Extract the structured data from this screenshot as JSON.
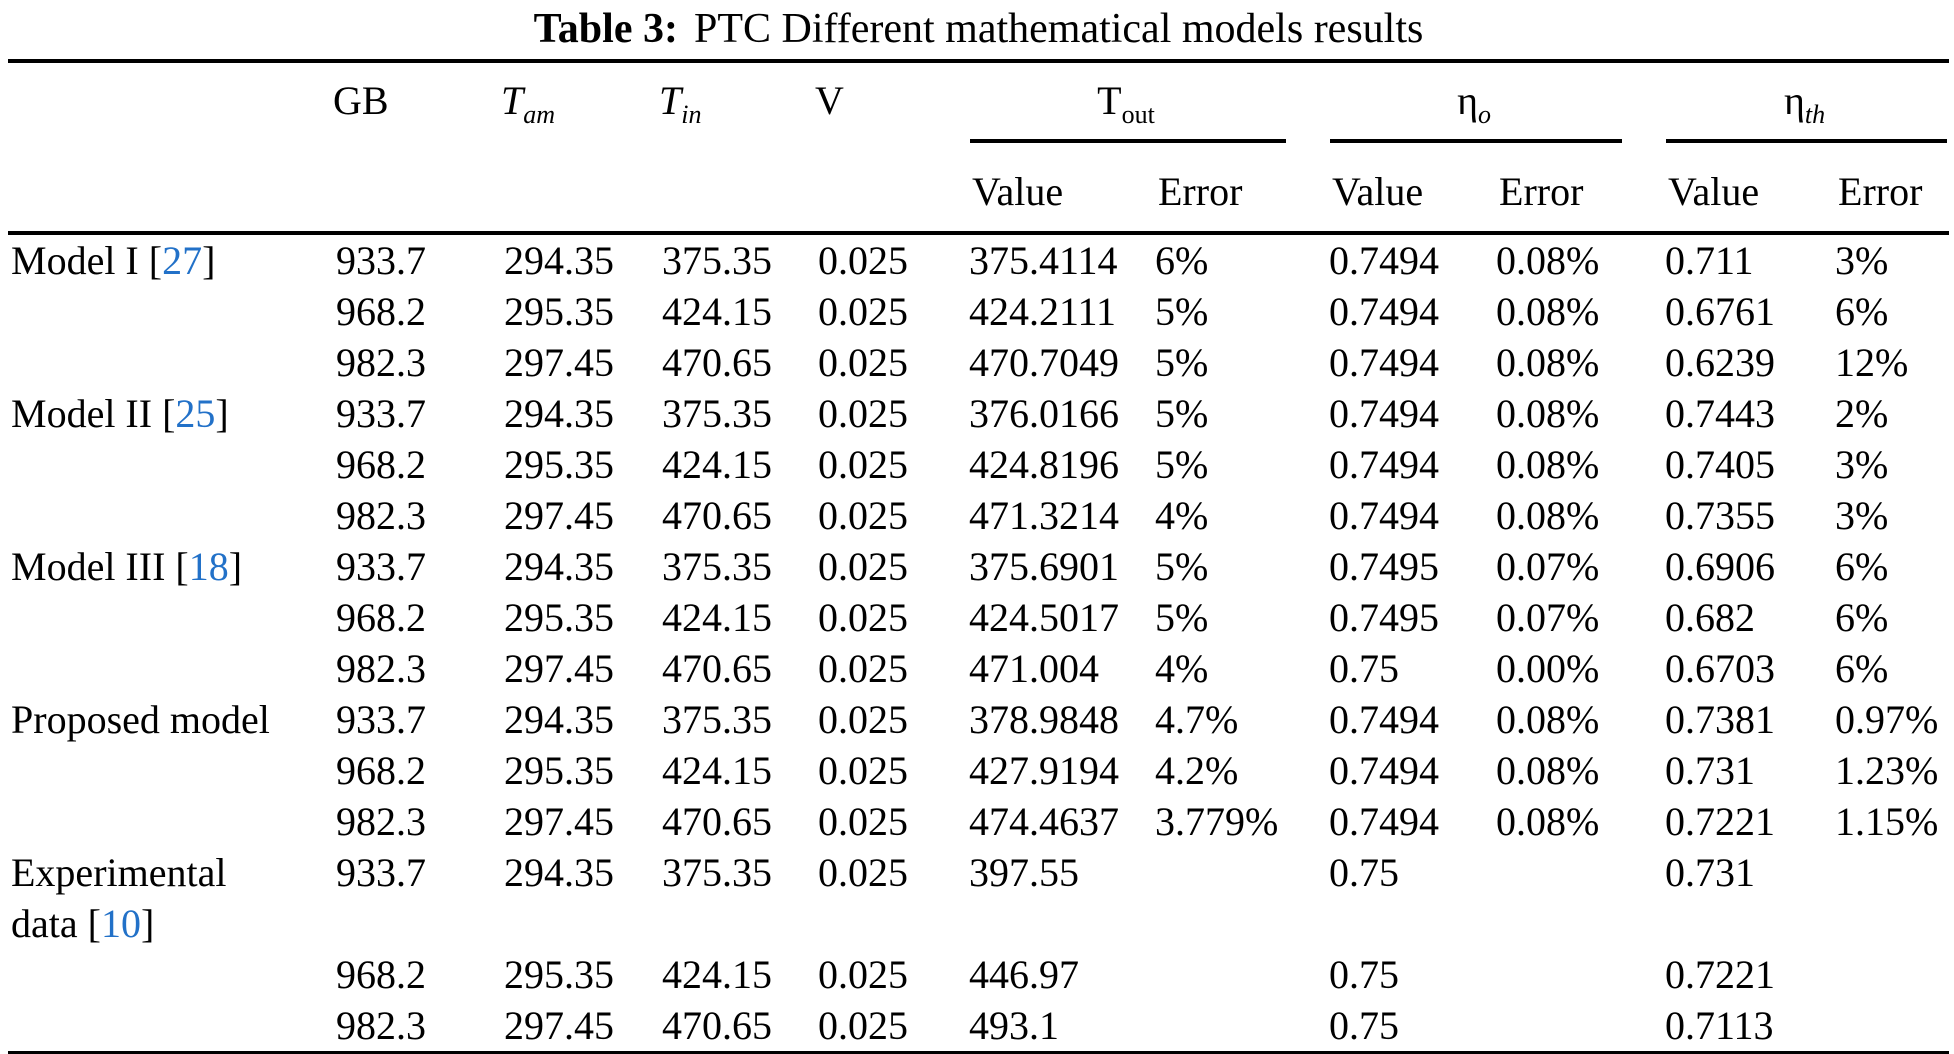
{
  "title": {
    "prefix": "Table 3:",
    "text": "PTC Different mathematical models results"
  },
  "colors": {
    "citation_link": "#2271c8",
    "text": "#000000",
    "rule": "#000000"
  },
  "citation_format": {
    "open": "[",
    "close": "]"
  },
  "columns": {
    "gb": "GB",
    "t_am": {
      "base": "T",
      "sub": "am"
    },
    "t_in": {
      "base": "T",
      "sub": "in"
    },
    "v": "V",
    "groups": [
      {
        "base": "T",
        "sub": "out"
      },
      {
        "base": "η",
        "sub": "o"
      },
      {
        "base": "η",
        "sub": "th"
      }
    ],
    "sub_headers": [
      "Value",
      "Error"
    ]
  },
  "rows": [
    {
      "label": "Model I",
      "cite": "27",
      "gb": "933.7",
      "t_am": "294.35",
      "t_in": "375.35",
      "v": "0.025",
      "t_out_value": "375.4114",
      "t_out_error": "6%",
      "eta_o_value": "0.7494",
      "eta_o_error": "0.08%",
      "eta_th_value": "0.711",
      "eta_th_error": "3%"
    },
    {
      "label": "",
      "cite": null,
      "gb": "968.2",
      "t_am": "295.35",
      "t_in": "424.15",
      "v": "0.025",
      "t_out_value": "424.2111",
      "t_out_error": "5%",
      "eta_o_value": "0.7494",
      "eta_o_error": "0.08%",
      "eta_th_value": "0.6761",
      "eta_th_error": "6%"
    },
    {
      "label": "",
      "cite": null,
      "gb": "982.3",
      "t_am": "297.45",
      "t_in": "470.65",
      "v": "0.025",
      "t_out_value": "470.7049",
      "t_out_error": "5%",
      "eta_o_value": "0.7494",
      "eta_o_error": "0.08%",
      "eta_th_value": "0.6239",
      "eta_th_error": "12%"
    },
    {
      "label": "Model II",
      "cite": "25",
      "gb": "933.7",
      "t_am": "294.35",
      "t_in": "375.35",
      "v": "0.025",
      "t_out_value": "376.0166",
      "t_out_error": "5%",
      "eta_o_value": "0.7494",
      "eta_o_error": "0.08%",
      "eta_th_value": "0.7443",
      "eta_th_error": "2%"
    },
    {
      "label": "",
      "cite": null,
      "gb": "968.2",
      "t_am": "295.35",
      "t_in": "424.15",
      "v": "0.025",
      "t_out_value": "424.8196",
      "t_out_error": "5%",
      "eta_o_value": "0.7494",
      "eta_o_error": "0.08%",
      "eta_th_value": "0.7405",
      "eta_th_error": "3%"
    },
    {
      "label": "",
      "cite": null,
      "gb": "982.3",
      "t_am": "297.45",
      "t_in": "470.65",
      "v": "0.025",
      "t_out_value": "471.3214",
      "t_out_error": "4%",
      "eta_o_value": "0.7494",
      "eta_o_error": "0.08%",
      "eta_th_value": "0.7355",
      "eta_th_error": "3%"
    },
    {
      "label": "Model III",
      "cite": "18",
      "gb": "933.7",
      "t_am": "294.35",
      "t_in": "375.35",
      "v": "0.025",
      "t_out_value": "375.6901",
      "t_out_error": "5%",
      "eta_o_value": "0.7495",
      "eta_o_error": "0.07%",
      "eta_th_value": "0.6906",
      "eta_th_error": "6%"
    },
    {
      "label": "",
      "cite": null,
      "gb": "968.2",
      "t_am": "295.35",
      "t_in": "424.15",
      "v": "0.025",
      "t_out_value": "424.5017",
      "t_out_error": "5%",
      "eta_o_value": "0.7495",
      "eta_o_error": "0.07%",
      "eta_th_value": "0.682",
      "eta_th_error": "6%"
    },
    {
      "label": "",
      "cite": null,
      "gb": "982.3",
      "t_am": "297.45",
      "t_in": "470.65",
      "v": "0.025",
      "t_out_value": "471.004",
      "t_out_error": "4%",
      "eta_o_value": "0.75",
      "eta_o_error": "0.00%",
      "eta_th_value": "0.6703",
      "eta_th_error": "6%"
    },
    {
      "label": "Proposed model",
      "cite": null,
      "gb": "933.7",
      "t_am": "294.35",
      "t_in": "375.35",
      "v": "0.025",
      "t_out_value": "378.9848",
      "t_out_error": "4.7%",
      "eta_o_value": "0.7494",
      "eta_o_error": "0.08%",
      "eta_th_value": "0.7381",
      "eta_th_error": "0.97%"
    },
    {
      "label": "",
      "cite": null,
      "gb": "968.2",
      "t_am": "295.35",
      "t_in": "424.15",
      "v": "0.025",
      "t_out_value": "427.9194",
      "t_out_error": "4.2%",
      "eta_o_value": "0.7494",
      "eta_o_error": "0.08%",
      "eta_th_value": "0.731",
      "eta_th_error": "1.23%"
    },
    {
      "label": "",
      "cite": null,
      "gb": "982.3",
      "t_am": "297.45",
      "t_in": "470.65",
      "v": "0.025",
      "t_out_value": "474.4637",
      "t_out_error": "3.779%",
      "eta_o_value": "0.7494",
      "eta_o_error": "0.08%",
      "eta_th_value": "0.7221",
      "eta_th_error": "1.15%"
    },
    {
      "label": "Experimental data",
      "cite": "10",
      "gb": "933.7",
      "t_am": "294.35",
      "t_in": "375.35",
      "v": "0.025",
      "t_out_value": "397.55",
      "t_out_error": "",
      "eta_o_value": "0.75",
      "eta_o_error": "",
      "eta_th_value": "0.731",
      "eta_th_error": ""
    },
    {
      "label": "",
      "cite": null,
      "gb": "968.2",
      "t_am": "295.35",
      "t_in": "424.15",
      "v": "0.025",
      "t_out_value": "446.97",
      "t_out_error": "",
      "eta_o_value": "0.75",
      "eta_o_error": "",
      "eta_th_value": "0.7221",
      "eta_th_error": ""
    },
    {
      "label": "",
      "cite": null,
      "gb": "982.3",
      "t_am": "297.45",
      "t_in": "470.65",
      "v": "0.025",
      "t_out_value": "493.1",
      "t_out_error": "",
      "eta_o_value": "0.75",
      "eta_o_error": "",
      "eta_th_value": "0.7113",
      "eta_th_error": ""
    }
  ]
}
